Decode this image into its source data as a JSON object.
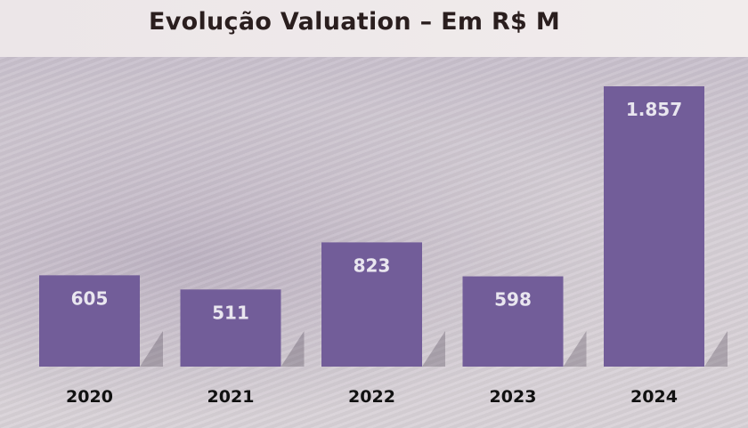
{
  "chart_data": {
    "type": "bar",
    "title": "Evolução Valuation – Em R$ M",
    "categories": [
      "2020",
      "2021",
      "2022",
      "2023",
      "2024"
    ],
    "values": [
      605,
      511,
      823,
      598,
      1857
    ],
    "value_labels": [
      "605",
      "511",
      "823",
      "598",
      "1.857"
    ],
    "ylim": [
      0,
      1857
    ],
    "grid": false,
    "colors": {
      "bar": "#725d99"
    }
  }
}
